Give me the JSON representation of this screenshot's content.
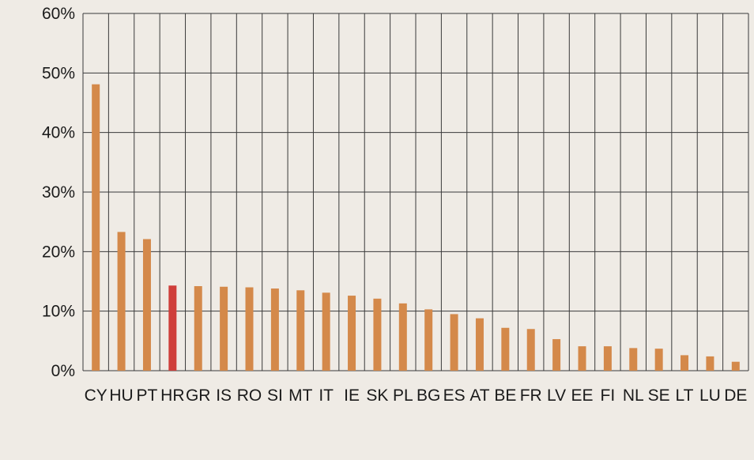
{
  "colors": {
    "background": "#efebe5",
    "bar": "#d4894a",
    "highlight_bar": "#cf3e3a",
    "grid": "#3a3a3a"
  },
  "chart_data": {
    "type": "bar",
    "title": "",
    "xlabel": "",
    "ylabel": "",
    "categories": [
      "CY",
      "HU",
      "PT",
      "HR",
      "GR",
      "IS",
      "RO",
      "SI",
      "MT",
      "IT",
      "IE",
      "SK",
      "PL",
      "BG",
      "ES",
      "AT",
      "BE",
      "FR",
      "LV",
      "EE",
      "FI",
      "NL",
      "SE",
      "LT",
      "LU",
      "DE"
    ],
    "values": [
      48.1,
      23.3,
      22.1,
      14.3,
      14.2,
      14.1,
      14.0,
      13.8,
      13.5,
      13.1,
      12.6,
      12.1,
      11.3,
      10.3,
      9.5,
      8.8,
      7.2,
      7.0,
      5.3,
      4.1,
      4.1,
      3.8,
      3.7,
      2.6,
      2.4,
      1.5
    ],
    "highlight": [
      "HR"
    ],
    "ylim": [
      0,
      60
    ],
    "yticks": [
      0,
      10,
      20,
      30,
      40,
      50,
      60
    ],
    "ytick_labels": [
      "0%",
      "10%",
      "20%",
      "30%",
      "40%",
      "50%",
      "60%"
    ],
    "grid": true
  }
}
